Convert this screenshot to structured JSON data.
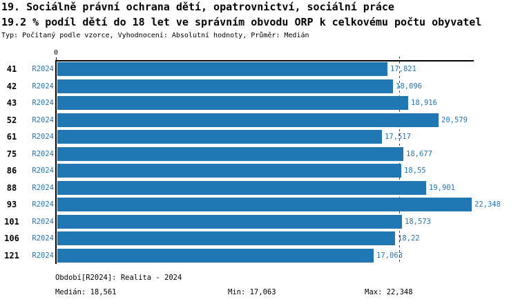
{
  "header": {
    "title_line1": "19. Sociálně právní ochrana dětí, opatrovnictví, sociální práce",
    "title_line2": "19.2 % podíl dětí do 18 let ve správním obvodu ORP k celkovému počtu obyvatel",
    "meta_line": "Typ: Počítaný podle vzorce, Vyhodnocení: Absolutní hodnoty, Průměr: Medián"
  },
  "chart_data": {
    "type": "bar",
    "orientation": "horizontal",
    "title": "19. Sociálně právní ochrana dětí, opatrovnictví, sociální práce",
    "subtitle": "19.2 % podíl dětí do 18 let ve správním obvodu ORP k celkovému počtu obyvatel",
    "categories": [
      "41",
      "42",
      "43",
      "52",
      "61",
      "75",
      "86",
      "88",
      "93",
      "101",
      "106",
      "121"
    ],
    "series": [
      {
        "name": "R2024",
        "values": [
          17.821,
          18.096,
          18.916,
          20.579,
          17.517,
          18.677,
          18.55,
          19.901,
          22.348,
          18.573,
          18.22,
          17.063
        ],
        "value_labels": [
          "17,821",
          "18,096",
          "18,916",
          "20,579",
          "17,517",
          "18,677",
          "18,55",
          "19,901",
          "22,348",
          "18,573",
          "18,22",
          "17,063"
        ]
      }
    ],
    "x_axis": {
      "min": 0,
      "max": 22.5,
      "zero_tick_label": "0"
    },
    "median_value": 18.561,
    "min_value": 17.063,
    "max_value": 22.348,
    "legend_position": "none",
    "grid": "off",
    "bar_color": "#2176B4",
    "label_color": "#2176B4",
    "median_line_color": "#444444"
  },
  "footer": {
    "period_label": "Období[R2024]: Realita - 2024",
    "median_label": "Medián: 18,561",
    "min_label": "Min: 17,063",
    "max_label": "Max: 22,348"
  }
}
